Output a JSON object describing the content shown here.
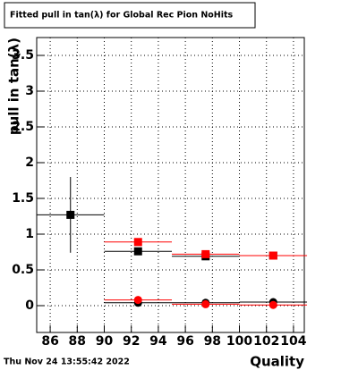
{
  "chart_data": {
    "type": "scatter",
    "title": "Fitted pull in tan(λ) for Global Rec Pion NoHits",
    "x_label": "Quality",
    "y_label": "pull in tan(λ)",
    "timestamp": "Thu Nov 24 13:55:42 2022",
    "xlim": [
      85,
      104.8
    ],
    "ylim": [
      -0.375,
      3.75
    ],
    "xticks": [
      86,
      88,
      90,
      92,
      94,
      96,
      98,
      100,
      102,
      104
    ],
    "yticks": [
      0,
      0.5,
      1,
      1.5,
      2,
      2.5,
      3,
      3.5
    ],
    "grid": true,
    "series": [
      {
        "color": "#000000",
        "marker": "square",
        "x": [
          87.5,
          92.5,
          97.5,
          102.5
        ],
        "values": [
          1.27,
          0.76,
          0.69,
          0.7
        ],
        "xerr": [
          2.5,
          2.5,
          2.5,
          2.5
        ],
        "yerr": [
          0.53,
          0.01,
          0.01,
          0.01
        ]
      },
      {
        "color": "#ff0000",
        "marker": "square",
        "x": [
          92.5,
          97.5,
          102.5
        ],
        "values": [
          0.89,
          0.72,
          0.7
        ],
        "xerr": [
          2.5,
          2.5,
          2.5
        ],
        "yerr": [
          0.02,
          0.02,
          0.01
        ]
      },
      {
        "color": "#000000",
        "marker": "circle",
        "x": [
          92.5,
          97.5,
          102.5
        ],
        "values": [
          0.04,
          0.04,
          0.05
        ],
        "xerr": [
          2.5,
          2.5,
          2.5
        ],
        "yerr": [
          0.01,
          0.01,
          0.01
        ]
      },
      {
        "color": "#ff0000",
        "marker": "circle",
        "x": [
          92.5,
          97.5,
          102.5
        ],
        "values": [
          0.08,
          0.02,
          0.01
        ],
        "xerr": [
          2.5,
          2.5,
          2.5
        ],
        "yerr": [
          0.05,
          0.01,
          0.01
        ]
      }
    ]
  }
}
